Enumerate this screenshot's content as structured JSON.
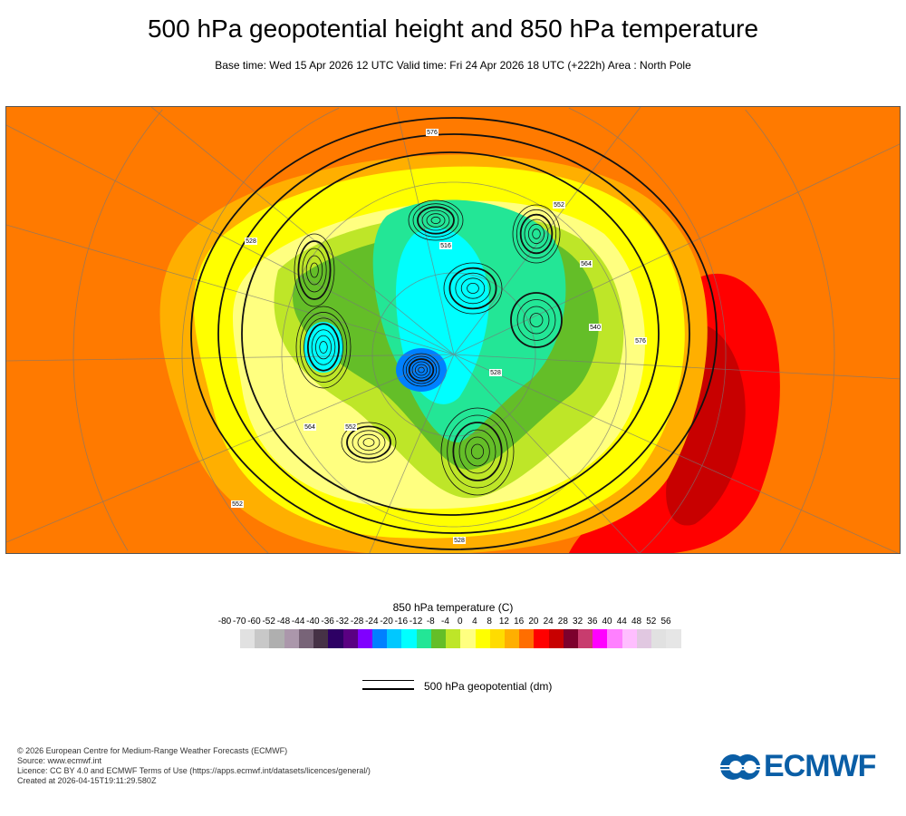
{
  "title": "500 hPa geopotential height and 850 hPa temperature",
  "subtitle": "Base time: Wed 15 Apr 2026 12 UTC Valid time: Fri 24 Apr 2026 18 UTC (+222h) Area : North Pole",
  "map": {
    "contour_labels": [
      "576",
      "552",
      "528",
      "552",
      "564",
      "528",
      "576",
      "552",
      "516",
      "540",
      "564",
      "528"
    ],
    "colors": {
      "ocean_warm": "#ff6e00",
      "hot": "#ff0000",
      "very_hot": "#c80000",
      "warm": "#ffaf00",
      "mild": "#ffdc00",
      "yellow": "#ffff00",
      "pale": "#ffff80",
      "lime": "#bee628",
      "green": "#64be28",
      "teal": "#23e696",
      "cyan": "#00ffff",
      "sky": "#00c8ff",
      "blue": "#0080ff"
    }
  },
  "colorbar": {
    "title": "850 hPa temperature (C)",
    "labels": [
      "-80",
      "-70",
      "-60",
      "-52",
      "-48",
      "-44",
      "-40",
      "-36",
      "-32",
      "-28",
      "-24",
      "-20",
      "-16",
      "-12",
      "-8",
      "-4",
      "0",
      "4",
      "8",
      "12",
      "16",
      "20",
      "24",
      "28",
      "32",
      "36",
      "40",
      "44",
      "48",
      "52",
      "56"
    ],
    "colors": [
      "#e1e1e1",
      "#c8c8c8",
      "#afafaf",
      "#ab97ab",
      "#786478",
      "#463246",
      "#2d0064",
      "#5a0082",
      "#8000ff",
      "#0080ff",
      "#00c8ff",
      "#00ffff",
      "#23e696",
      "#64be28",
      "#bee628",
      "#ffff80",
      "#ffff00",
      "#ffdc00",
      "#ffaf00",
      "#ff6e00",
      "#ff0000",
      "#c80000",
      "#7d002d",
      "#c83c6e",
      "#ff00ff",
      "#ff80ff",
      "#ffbeff",
      "#e1c8e1",
      "#e1e1e1",
      "#e6e6e6"
    ]
  },
  "legend": {
    "label": "500 hPa geopotential (dm)"
  },
  "footer": {
    "lines": [
      "© 2026 European Centre for Medium-Range Weather Forecasts (ECMWF)",
      "Source: www.ecmwf.int",
      "Licence: CC BY 4.0 and ECMWF Terms of Use (https://apps.ecmwf.int/datasets/licences/general/)",
      "Created at 2026-04-15T19:11:29.580Z"
    ],
    "logo_text": "ECMWF",
    "logo_color": "#0a5ea6"
  }
}
